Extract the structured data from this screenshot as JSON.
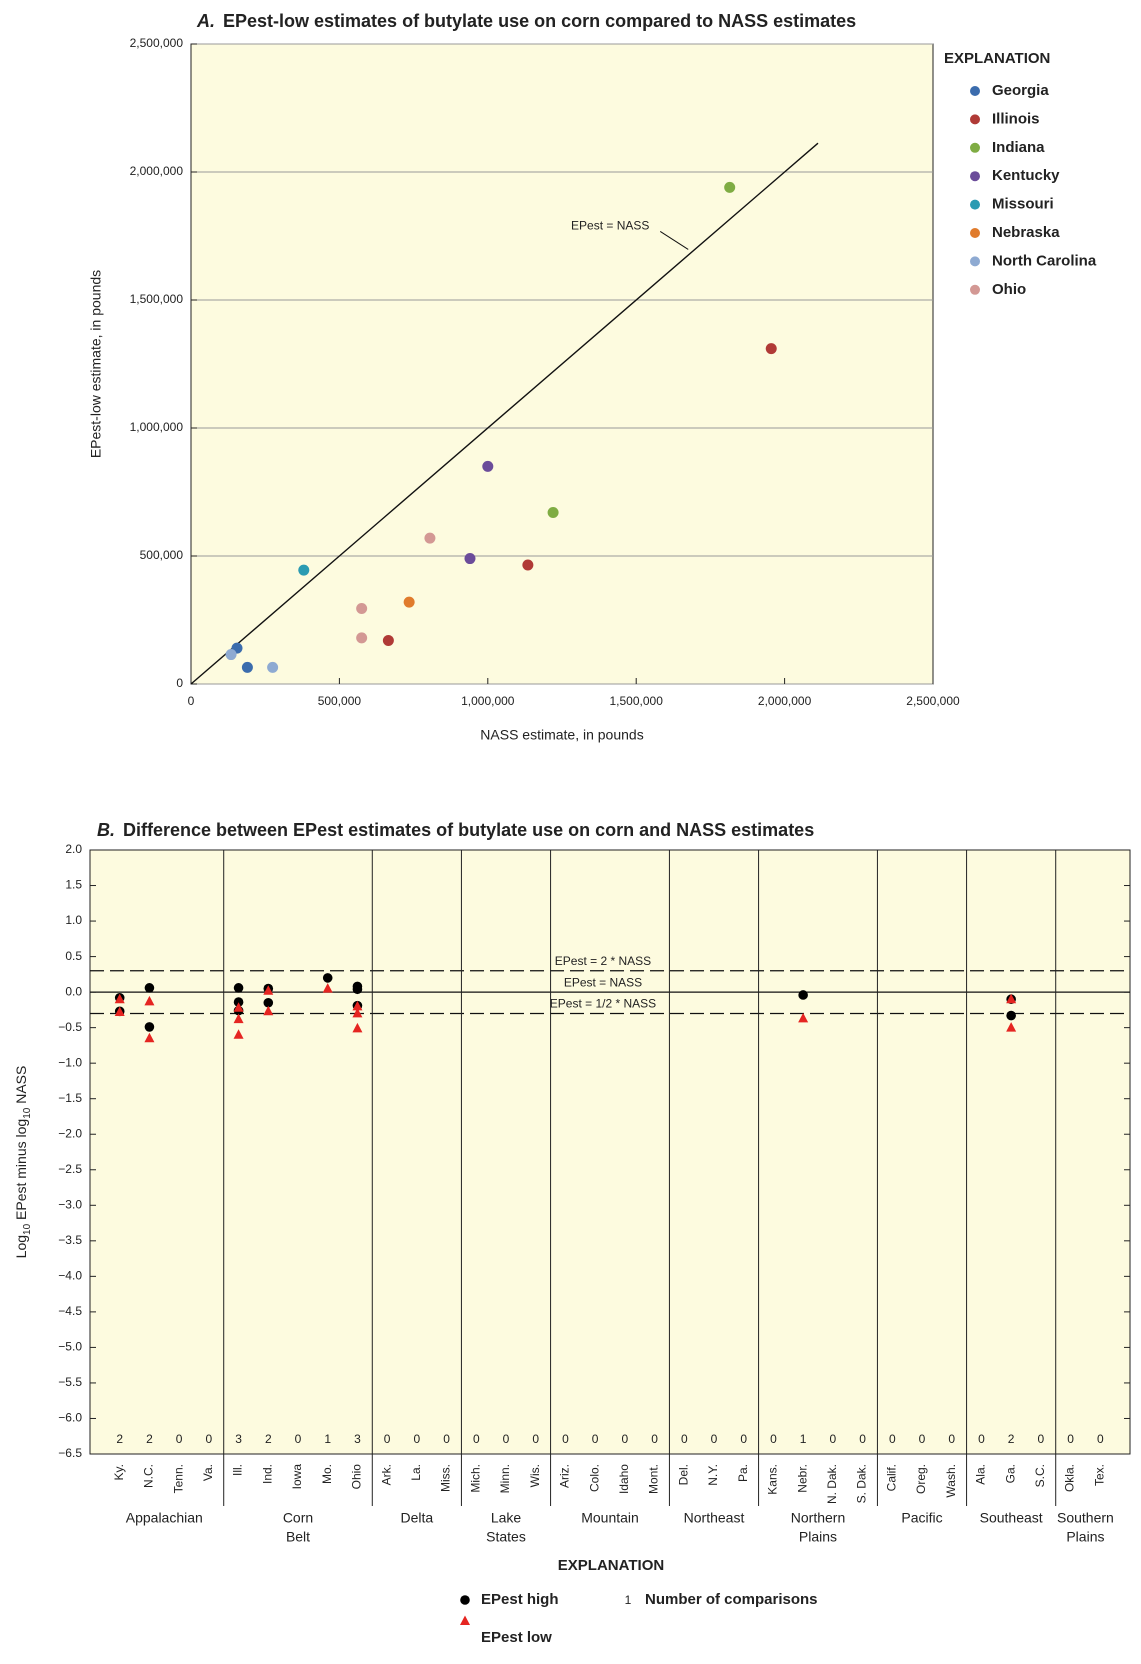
{
  "chart_data": [
    {
      "type": "scatter",
      "panel_label": "A.",
      "title": "EPest-low estimates of butylate use on corn compared to NASS estimates",
      "xlabel": "NASS estimate, in pounds",
      "ylabel": "EPest-low estimate, in pounds",
      "xlim": [
        0,
        2500000
      ],
      "ylim": [
        0,
        2500000
      ],
      "xticks": [
        0,
        {
          "value": 500000,
          "label": "500,000"
        },
        {
          "value": 1000000,
          "label": "1,000,000"
        },
        {
          "value": 1500000,
          "label": "1,500,000"
        },
        {
          "value": 2000000,
          "label": "2,000,000"
        },
        {
          "value": 2500000,
          "label": "2,500,000"
        }
      ],
      "yticks": [
        0,
        {
          "value": 500000,
          "label": "500,000"
        },
        {
          "value": 1000000,
          "label": "1,000,000"
        },
        {
          "value": 1500000,
          "label": "1,500,000"
        },
        {
          "value": 2000000,
          "label": "2,000,000"
        },
        {
          "value": 2500000,
          "label": "2,500,000"
        }
      ],
      "grid": "y",
      "identity_line_label": "EPest = NASS",
      "legend_title": "EXPLANATION",
      "legend": "right",
      "series": [
        {
          "name": "Georgia",
          "color": "#3b6cad",
          "x": [
            155000,
            190000
          ],
          "values": [
            140000,
            65000
          ]
        },
        {
          "name": "Illinois",
          "color": "#b03a36",
          "x": [
            1955000,
            1135000,
            665000
          ],
          "values": [
            1310000,
            465000,
            170000
          ]
        },
        {
          "name": "Indiana",
          "color": "#7fac43",
          "x": [
            1815000,
            1220000
          ],
          "values": [
            1940000,
            670000
          ]
        },
        {
          "name": "Kentucky",
          "color": "#6b4c9a",
          "x": [
            1000000,
            940000
          ],
          "values": [
            850000,
            490000
          ]
        },
        {
          "name": "Missouri",
          "color": "#2b9bb2",
          "x": [
            380000
          ],
          "values": [
            445000
          ]
        },
        {
          "name": "Nebraska",
          "color": "#e07b2c",
          "x": [
            735000
          ],
          "values": [
            320000
          ]
        },
        {
          "name": "North Carolina",
          "color": "#8eaad2",
          "x": [
            135000,
            275000
          ],
          "values": [
            115000,
            65000
          ]
        },
        {
          "name": "Ohio",
          "color": "#d39894",
          "x": [
            805000,
            575000,
            575000
          ],
          "values": [
            570000,
            295000,
            180000
          ]
        }
      ]
    },
    {
      "type": "strip",
      "panel_label": "B.",
      "title": "Difference between EPest estimates of butylate use on corn and NASS estimates",
      "ylabel_parts": [
        "Log",
        "10",
        " EPest minus log",
        "10",
        " NASS"
      ],
      "ylim": [
        -6.5,
        2
      ],
      "yticks": [
        {
          "value": 2,
          "label": "2.0"
        },
        {
          "value": 1.5,
          "label": "1.5"
        },
        {
          "value": 1,
          "label": "1.0"
        },
        {
          "value": 0.5,
          "label": "0.5"
        },
        {
          "value": 0,
          "label": "0.0"
        },
        {
          "value": -0.5,
          "label": "−0.5"
        },
        {
          "value": -1,
          "label": "−1.0"
        },
        {
          "value": -1.5,
          "label": "−1.5"
        },
        {
          "value": -2,
          "label": "−2.0"
        },
        {
          "value": -2.5,
          "label": "−2.5"
        },
        {
          "value": -3,
          "label": "−3.0"
        },
        {
          "value": -3.5,
          "label": "−3.5"
        },
        {
          "value": -4,
          "label": "−4.0"
        },
        {
          "value": -4.5,
          "label": "−4.5"
        },
        {
          "value": -5,
          "label": "−5.0"
        },
        {
          "value": -5.5,
          "label": "−5.5"
        },
        {
          "value": -6,
          "label": "−6.0"
        },
        {
          "value": -6.5,
          "label": "−6.5"
        }
      ],
      "grid": false,
      "groups": [
        {
          "label": [
            "Appalachian"
          ],
          "categories": [
            "Ky.",
            "N.C.",
            "Tenn.",
            "Va."
          ]
        },
        {
          "label": [
            "Corn",
            "Belt"
          ],
          "categories": [
            "Ill.",
            "Ind.",
            "Iowa",
            "Mo.",
            "Ohio"
          ]
        },
        {
          "label": [
            "Delta"
          ],
          "categories": [
            "Ark.",
            "La.",
            "Miss."
          ]
        },
        {
          "label": [
            "Lake",
            "States"
          ],
          "categories": [
            "Mich.",
            "Minn.",
            "Wis."
          ]
        },
        {
          "label": [
            "Mountain"
          ],
          "categories": [
            "Ariz.",
            "Colo.",
            "Idaho",
            "Mont."
          ]
        },
        {
          "label": [
            "Northeast"
          ],
          "categories": [
            "Del.",
            "N.Y.",
            "Pa."
          ]
        },
        {
          "label": [
            "Northern",
            "Plains"
          ],
          "categories": [
            "Kans.",
            "Nebr.",
            "N. Dak.",
            "S. Dak."
          ]
        },
        {
          "label": [
            "Pacific"
          ],
          "categories": [
            "Calif.",
            "Oreg.",
            "Wash."
          ]
        },
        {
          "label": [
            "Southeast"
          ],
          "categories": [
            "Ala.",
            "Ga.",
            "S.C."
          ]
        },
        {
          "label": [
            "Southern",
            "Plains"
          ],
          "categories": [
            "Okla.",
            "Tex."
          ]
        }
      ],
      "counts": [
        2,
        2,
        0,
        0,
        3,
        2,
        0,
        1,
        3,
        0,
        0,
        0,
        0,
        0,
        0,
        0,
        0,
        0,
        0,
        0,
        0,
        0,
        0,
        1,
        0,
        0,
        0,
        0,
        0,
        0,
        2,
        0,
        0,
        0
      ],
      "reference_lines": [
        {
          "value": 0.301,
          "label": "EPest = 2 * NASS",
          "dashed": true
        },
        {
          "value": 0,
          "label": "EPest = NASS",
          "dashed": false
        },
        {
          "value": -0.301,
          "label": "EPest = 1/2 * NASS",
          "dashed": true
        }
      ],
      "legend_title": "EXPLANATION",
      "count_legend": {
        "sample": "1",
        "label": "Number of comparisons"
      },
      "series": [
        {
          "name": "EPest high",
          "marker": "circle",
          "color": "#000000",
          "x": [
            "Ky.",
            "Ky.",
            "N.C.",
            "N.C.",
            "Ill.",
            "Ill.",
            "Ill.",
            "Ind.",
            "Ind.",
            "Mo.",
            "Ohio",
            "Ohio",
            "Ohio",
            "Nebr.",
            "Ga.",
            "Ga."
          ],
          "values": [
            -0.08,
            -0.27,
            0.06,
            -0.49,
            0.06,
            -0.14,
            -0.26,
            0.05,
            -0.15,
            0.2,
            0.08,
            0.04,
            -0.19,
            -0.04,
            -0.1,
            -0.33
          ]
        },
        {
          "name": "EPest low",
          "marker": "triangle",
          "color": "#e52521",
          "x": [
            "Ky.",
            "Ky.",
            "N.C.",
            "N.C.",
            "Ill.",
            "Ill.",
            "Ill.",
            "Ind.",
            "Ind.",
            "Mo.",
            "Ohio",
            "Ohio",
            "Ohio",
            "Nebr.",
            "Ga.",
            "Ga."
          ],
          "values": [
            -0.1,
            -0.28,
            -0.13,
            -0.65,
            -0.22,
            -0.38,
            -0.6,
            0.02,
            -0.27,
            0.05,
            -0.2,
            -0.3,
            -0.51,
            -0.37,
            -0.1,
            -0.5
          ]
        }
      ]
    }
  ]
}
